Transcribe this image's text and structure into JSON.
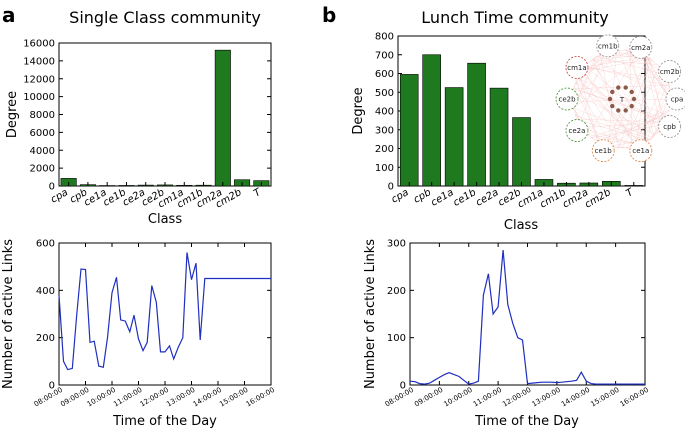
{
  "panels": {
    "a": {
      "letter": "a",
      "title": "Single Class community"
    },
    "b": {
      "letter": "b",
      "title": "Lunch Time community"
    }
  },
  "network_inset": {
    "nodes": [
      "cm1b",
      "cm2a",
      "cm1a",
      "cm2b",
      "ce2b",
      "T",
      "cpa",
      "cpb",
      "ce2a",
      "ce1b",
      "ce1a"
    ]
  },
  "chart_data": [
    {
      "type": "bar",
      "title": "Single Class community",
      "categories": [
        "cpa",
        "cpb",
        "ce1a",
        "ce1b",
        "ce2a",
        "ce2b",
        "cm1a",
        "cm1b",
        "cm2a",
        "cm2b",
        "T"
      ],
      "values": [
        850,
        150,
        50,
        60,
        100,
        120,
        80,
        90,
        15200,
        700,
        600
      ],
      "xlabel": "Class",
      "ylabel": "Degree",
      "ylim": [
        0,
        16000
      ],
      "yticks": [
        0,
        2000,
        4000,
        6000,
        8000,
        10000,
        12000,
        14000,
        16000
      ],
      "color": "#1f7a1f"
    },
    {
      "type": "bar",
      "title": "Lunch Time community",
      "categories": [
        "cpa",
        "cpb",
        "ce1a",
        "ce1b",
        "ce2a",
        "ce2b",
        "cm1a",
        "cm1b",
        "cm2a",
        "cm2b",
        "T"
      ],
      "values": [
        595,
        700,
        525,
        655,
        522,
        365,
        35,
        15,
        16,
        25,
        3
      ],
      "xlabel": "Class",
      "ylabel": "Degree",
      "ylim": [
        0,
        800
      ],
      "yticks": [
        0,
        100,
        200,
        300,
        400,
        500,
        600,
        700,
        800
      ],
      "color": "#1f7a1f"
    },
    {
      "type": "line",
      "x": [
        8.0,
        8.17,
        8.33,
        8.5,
        8.67,
        8.83,
        9.0,
        9.17,
        9.33,
        9.5,
        9.67,
        9.83,
        10.0,
        10.17,
        10.33,
        10.5,
        10.67,
        10.83,
        11.0,
        11.17,
        11.33,
        11.5,
        11.67,
        11.83,
        12.0,
        12.17,
        12.33,
        12.5,
        12.67,
        12.83,
        13.0,
        13.17,
        13.33,
        13.5,
        13.67,
        13.83,
        14.0,
        14.17,
        14.33,
        14.5,
        14.67,
        14.83,
        15.0,
        15.17,
        15.33,
        15.5,
        15.67,
        15.83,
        16.0
      ],
      "y": [
        380,
        100,
        65,
        70,
        300,
        490,
        488,
        180,
        185,
        80,
        75,
        200,
        390,
        455,
        275,
        270,
        225,
        295,
        195,
        145,
        180,
        420,
        350,
        140,
        140,
        165,
        110,
        160,
        200,
        560,
        445,
        515,
        190,
        450,
        450,
        450,
        450,
        450,
        450,
        450,
        450,
        450,
        450,
        450,
        450,
        450,
        450,
        450,
        450
      ],
      "series_x_end": 16.0,
      "xlabel": "Time of the Day",
      "ylabel": "Number of active Links",
      "xlim": [
        8,
        16
      ],
      "ylim": [
        0,
        600
      ],
      "xticks": [
        "08:00:00",
        "09:00:00",
        "10:00:00",
        "11:00:00",
        "12:00:00",
        "13:00:00",
        "14:00:00",
        "15:00:00",
        "16:00:00"
      ],
      "yticks": [
        0,
        200,
        400,
        600
      ],
      "color": "#1f2fbf"
    },
    {
      "type": "line",
      "x": [
        8.0,
        8.17,
        8.33,
        8.5,
        8.67,
        8.83,
        9.0,
        9.17,
        9.33,
        9.5,
        9.67,
        9.83,
        10.0,
        10.17,
        10.33,
        10.5,
        10.67,
        10.83,
        11.0,
        11.17,
        11.33,
        11.5,
        11.67,
        11.83,
        12.0,
        12.17,
        12.33,
        12.5,
        12.67,
        12.83,
        13.0,
        13.17,
        13.33,
        13.5,
        13.67,
        13.83,
        14.0,
        14.17,
        14.33,
        14.5,
        14.67,
        14.83,
        15.0,
        15.17,
        15.33,
        15.5,
        15.67,
        15.83,
        16.0
      ],
      "y": [
        8,
        7,
        3,
        2,
        4,
        10,
        16,
        22,
        26,
        22,
        18,
        10,
        2,
        4,
        8,
        190,
        235,
        150,
        165,
        285,
        170,
        130,
        100,
        95,
        3,
        4,
        5,
        6,
        6,
        6,
        5,
        6,
        7,
        8,
        10,
        27,
        8,
        3,
        2,
        2,
        2,
        2,
        2,
        2,
        2,
        2,
        2,
        2,
        2
      ],
      "xlabel": "Time of the Day",
      "ylabel": "Number of active Links",
      "xlim": [
        8,
        16
      ],
      "ylim": [
        0,
        300
      ],
      "xticks": [
        "08:00:00",
        "09:00:00",
        "10:00:00",
        "11:00:00",
        "12:00:00",
        "13:00:00",
        "14:00:00",
        "15:00:00",
        "16:00:00"
      ],
      "yticks": [
        0,
        100,
        200,
        300
      ],
      "color": "#1f2fbf"
    }
  ]
}
